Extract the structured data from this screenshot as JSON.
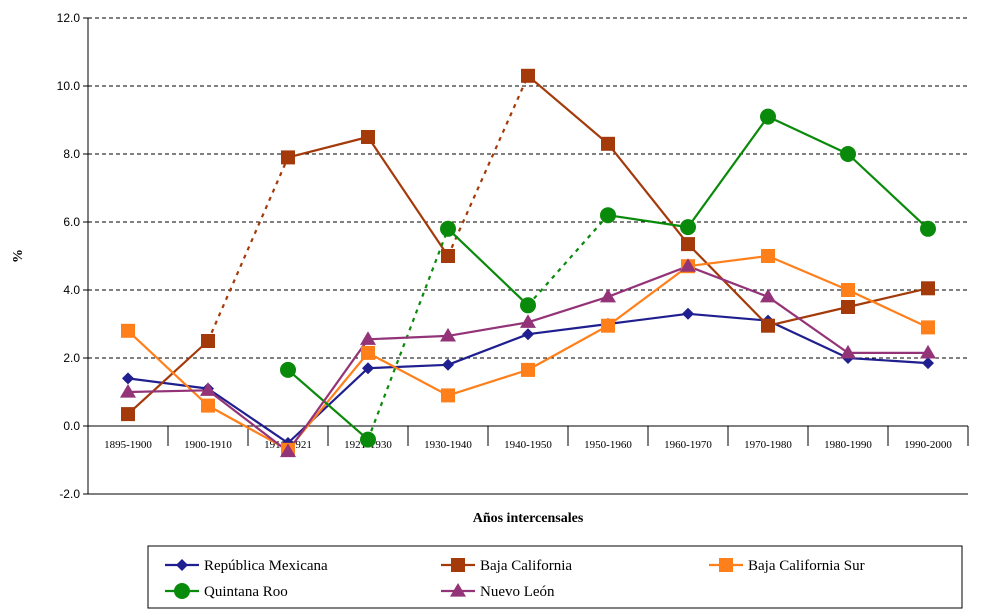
{
  "chart_data": {
    "type": "line",
    "xlabel": "Años intercensales",
    "ylabel": "%",
    "ylim": [
      -2.0,
      12.0
    ],
    "y_ticks": [
      "12.0",
      "10.0",
      "8.0",
      "6.0",
      "4.0",
      "2.0",
      "0.0",
      "-2.0"
    ],
    "grid": "horizontal dashed",
    "legend_position": "bottom",
    "categories": [
      "1895-1900",
      "1900-1910",
      "1910-1921",
      "1921-1930",
      "1930-1940",
      "1940-1950",
      "1950-1960",
      "1960-1970",
      "1970-1980",
      "1980-1990",
      "1990-2000"
    ],
    "series": [
      {
        "name": "República Mexicana",
        "color": "#1F1F8F",
        "marker": "diamond",
        "values": [
          1.4,
          1.1,
          -0.5,
          1.7,
          1.8,
          2.7,
          3.0,
          3.3,
          3.1,
          2.0,
          1.85
        ],
        "dotted_segments": []
      },
      {
        "name": "Baja California",
        "color": "#A43A0A",
        "marker": "square",
        "values": [
          0.35,
          2.5,
          7.9,
          8.5,
          5.0,
          10.3,
          8.3,
          5.35,
          2.95,
          3.5,
          4.05
        ],
        "dotted_segments": [
          1,
          4
        ]
      },
      {
        "name": "Baja California Sur",
        "color": "#FF7F1A",
        "marker": "square",
        "values": [
          2.8,
          0.6,
          -0.7,
          2.15,
          0.9,
          1.65,
          2.95,
          4.7,
          5.0,
          4.0,
          2.9
        ],
        "dotted_segments": []
      },
      {
        "name": "Quintana Roo",
        "color": "#0A8A0A",
        "marker": "circle",
        "values": [
          null,
          null,
          1.65,
          -0.4,
          5.8,
          3.55,
          6.2,
          5.85,
          9.1,
          8.0,
          5.8
        ],
        "dotted_segments": [
          3,
          5
        ]
      },
      {
        "name": "Nuevo León",
        "color": "#943478",
        "marker": "triangle",
        "values": [
          1.0,
          1.05,
          -0.75,
          2.55,
          2.65,
          3.05,
          3.8,
          4.7,
          3.8,
          2.15,
          2.15
        ],
        "dotted_segments": []
      }
    ]
  }
}
